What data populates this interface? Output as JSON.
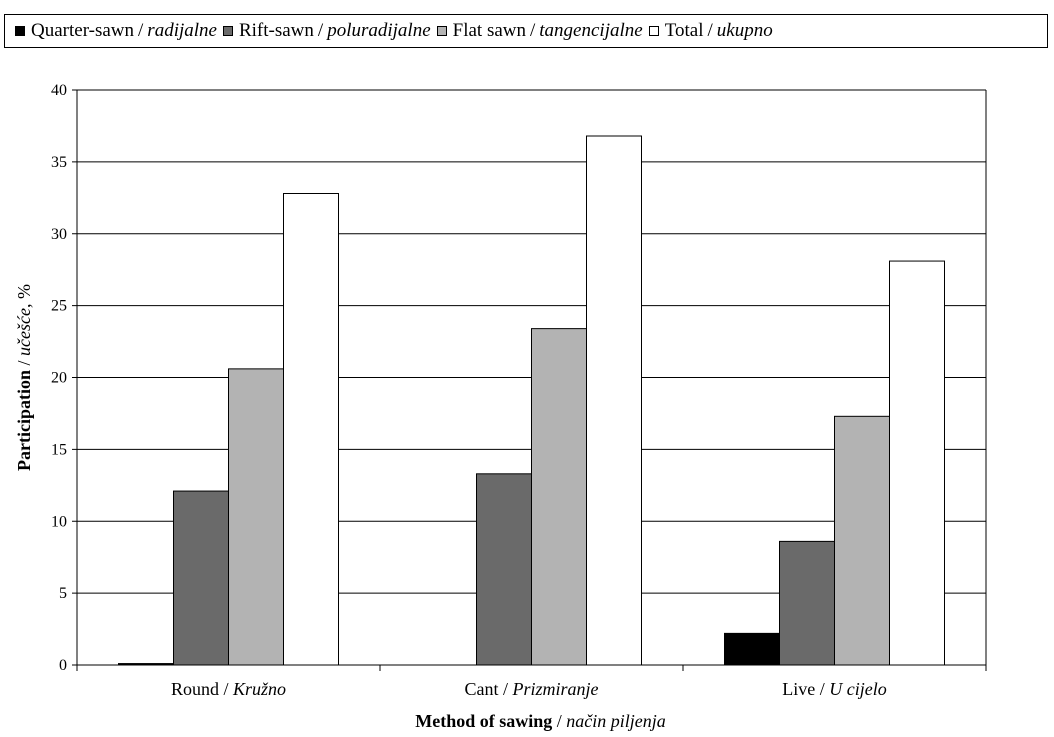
{
  "chart_data": {
    "type": "bar",
    "categories": [
      {
        "main": "Round",
        "it": "Kružno"
      },
      {
        "main": "Cant",
        "it": "Prizmiranje"
      },
      {
        "main": "Live",
        "it": "U cijelo"
      }
    ],
    "series": [
      {
        "name_main": "Quarter-sawn",
        "name_it": "radijalne",
        "color": "#000000",
        "values": [
          0.1,
          0.0,
          2.2
        ]
      },
      {
        "name_main": "Rift-sawn",
        "name_it": "poluradijalne",
        "color": "#6a6a6a",
        "values": [
          12.1,
          13.3,
          8.6
        ]
      },
      {
        "name_main": "Flat sawn",
        "name_it": "tangencijalne",
        "color": "#b3b3b3",
        "values": [
          20.6,
          23.4,
          17.3
        ]
      },
      {
        "name_main": "Total",
        "name_it": "ukupno",
        "color": "#ffffff",
        "values": [
          32.8,
          36.8,
          28.1
        ]
      }
    ],
    "ylim": [
      0,
      40
    ],
    "yticks": [
      0,
      5,
      10,
      15,
      20,
      25,
      30,
      35,
      40
    ],
    "grid": true,
    "legend_position": "top",
    "xlabel": {
      "main": "Method of sawing",
      "it": "način piljenja"
    },
    "ylabel": {
      "main": "Participation",
      "it": "učešće",
      "unit": ", %"
    }
  }
}
